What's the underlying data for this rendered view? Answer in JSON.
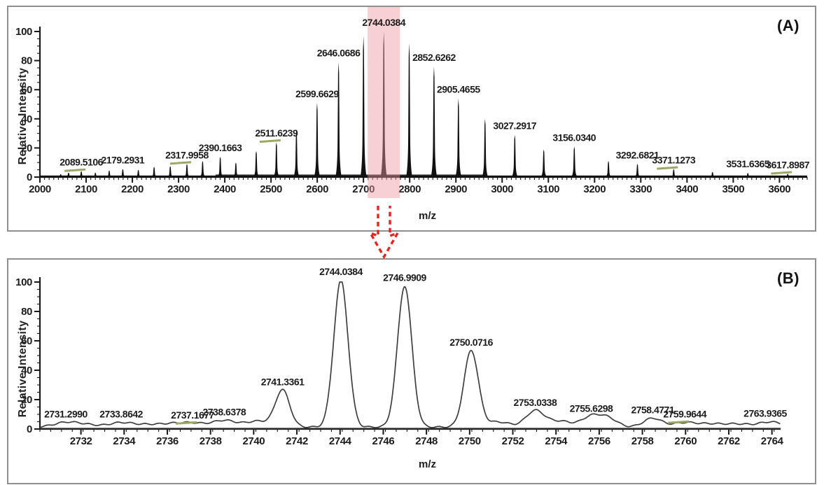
{
  "figure": {
    "background": "#ffffff",
    "panel_border_color": "#8f8f8f",
    "arrow_color": "#E8231E",
    "annotation_dash_color": "#9BA866",
    "axis_color": "#1a1a1a"
  },
  "chart_data": [
    {
      "type": "line",
      "render": "centroid-sticks",
      "corner_label": "(A)",
      "xlabel": "m/z",
      "ylabel": "Relative Intensity",
      "xlim": [
        2000,
        3660
      ],
      "ylim": [
        0,
        100
      ],
      "grid": false,
      "x_tick_labels": [
        "2000",
        "2100",
        "2200",
        "2300",
        "2400",
        "2500",
        "2600",
        "2700",
        "2800",
        "2900",
        "3000",
        "3100",
        "3200",
        "3300",
        "3400",
        "3500",
        "3600"
      ],
      "y_tick_labels": [
        "0",
        "20",
        "40",
        "60",
        "80",
        "100"
      ],
      "trace_color": "#111111",
      "highlight": {
        "from_mz": 2709,
        "to_mz": 2779,
        "color": "#ED96A0",
        "opacity": 0.45
      },
      "peaks": [
        {
          "mz": 2045,
          "i": 2
        },
        {
          "mz": 2062,
          "i": 3
        },
        {
          "mz": 2089.5106,
          "i": 4,
          "label": "2089.5106",
          "underline": true
        },
        {
          "mz": 2120,
          "i": 3
        },
        {
          "mz": 2150,
          "i": 4.5
        },
        {
          "mz": 2179.2931,
          "i": 5.5,
          "label": "2179.2931"
        },
        {
          "mz": 2213,
          "i": 5
        },
        {
          "mz": 2247,
          "i": 7
        },
        {
          "mz": 2282,
          "i": 7.5
        },
        {
          "mz": 2317.9958,
          "i": 9,
          "label": "2317.9958",
          "underline": true
        },
        {
          "mz": 2352,
          "i": 11
        },
        {
          "mz": 2390.1663,
          "i": 14,
          "label": "2390.1663"
        },
        {
          "mz": 2424,
          "i": 10
        },
        {
          "mz": 2468,
          "i": 18
        },
        {
          "mz": 2511.6239,
          "i": 24,
          "label": "2511.6239",
          "underline": true
        },
        {
          "mz": 2555,
          "i": 33
        },
        {
          "mz": 2599.6629,
          "i": 51,
          "label": "2599.6629"
        },
        {
          "mz": 2646.0686,
          "i": 79,
          "label": "2646.0686"
        },
        {
          "mz": 2700,
          "i": 97
        },
        {
          "mz": 2744.0384,
          "i": 100,
          "label": "2744.0384"
        },
        {
          "mz": 2799,
          "i": 92
        },
        {
          "mz": 2852.6262,
          "i": 76,
          "label": "2852.6262"
        },
        {
          "mz": 2905.4655,
          "i": 54,
          "label": "2905.4655"
        },
        {
          "mz": 2963,
          "i": 40
        },
        {
          "mz": 3027.2917,
          "i": 29,
          "label": "3027.2917"
        },
        {
          "mz": 3090,
          "i": 19
        },
        {
          "mz": 3156.034,
          "i": 21,
          "label": "3156.0340"
        },
        {
          "mz": 3230,
          "i": 11
        },
        {
          "mz": 3292.6821,
          "i": 9,
          "label": "3292.6821"
        },
        {
          "mz": 3371.1273,
          "i": 5.5,
          "label": "3371.1273",
          "underline": true
        },
        {
          "mz": 3455,
          "i": 3.5
        },
        {
          "mz": 3531.6365,
          "i": 2.8,
          "label": "3531.6365"
        },
        {
          "mz": 3617.8987,
          "i": 2.2,
          "label": "3617.8987",
          "underline": true
        }
      ]
    },
    {
      "type": "line",
      "render": "profile",
      "corner_label": "(B)",
      "xlabel": "m/z",
      "ylabel": "Relative Intensity",
      "xlim": [
        2730.1,
        2764.4
      ],
      "ylim": [
        0,
        100
      ],
      "grid": false,
      "x_tick_labels": [
        "2732",
        "2734",
        "2736",
        "2738",
        "2740",
        "2742",
        "2744",
        "2746",
        "2748",
        "2750",
        "2752",
        "2754",
        "2756",
        "2758",
        "2760",
        "2762",
        "2764"
      ],
      "y_tick_labels": [
        "0",
        "20",
        "40",
        "60",
        "80",
        "100"
      ],
      "trace_color": "#3F3F3F",
      "peaks": [
        {
          "mz": 2731.299,
          "i": 3,
          "label": "2731.2990"
        },
        {
          "mz": 2732.2,
          "i": 1.5
        },
        {
          "mz": 2733.8642,
          "i": 3,
          "label": "2733.8642"
        },
        {
          "mz": 2735.1,
          "i": 1.5
        },
        {
          "mz": 2736.2,
          "i": 2
        },
        {
          "mz": 2737.1677,
          "i": 2.5,
          "label": "2737.1677",
          "underline": true
        },
        {
          "mz": 2738.6378,
          "i": 4.5,
          "label": "2738.6378"
        },
        {
          "mz": 2740.2,
          "i": 4
        },
        {
          "mz": 2741.3361,
          "i": 25,
          "label": "2741.3361"
        },
        {
          "mz": 2744.0384,
          "i": 100,
          "label": "2744.0384"
        },
        {
          "mz": 2746.9909,
          "i": 96,
          "label": "2746.9909"
        },
        {
          "mz": 2750.0716,
          "i": 52,
          "label": "2750.0716"
        },
        {
          "mz": 2751.3,
          "i": 3.5
        },
        {
          "mz": 2753.0338,
          "i": 11,
          "label": "2753.0338"
        },
        {
          "mz": 2754.2,
          "i": 4
        },
        {
          "mz": 2755.6298,
          "i": 7,
          "label": "2755.6298"
        },
        {
          "mz": 2756.4,
          "i": 6
        },
        {
          "mz": 2758.4771,
          "i": 6,
          "label": "2758.4771"
        },
        {
          "mz": 2759.9644,
          "i": 3,
          "label": "2759.9644",
          "underline": true
        },
        {
          "mz": 2761.2,
          "i": 2
        },
        {
          "mz": 2762.4,
          "i": 2
        },
        {
          "mz": 2763.9365,
          "i": 3.5,
          "label": "2763.9365"
        }
      ]
    }
  ]
}
